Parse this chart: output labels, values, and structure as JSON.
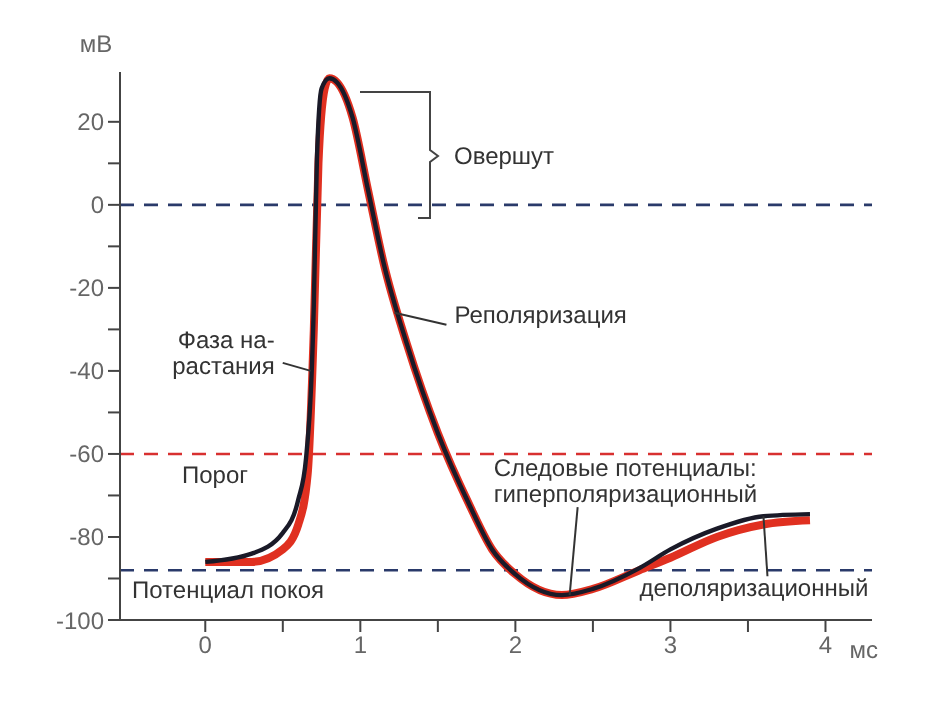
{
  "chart_data": {
    "type": "line",
    "xlabel": "мс",
    "ylabel": "мВ",
    "xlim": [
      -0.55,
      4.3
    ],
    "ylim": [
      -100,
      32
    ],
    "xticks": [
      0,
      {
        "value": 0.5,
        "label": null
      },
      1,
      {
        "value": 1.5,
        "label": null
      },
      2,
      {
        "value": 2.5,
        "label": null
      },
      3,
      {
        "value": 3.5,
        "label": null
      },
      4
    ],
    "yticks": [
      -100,
      {
        "value": -90,
        "label": null
      },
      -80,
      {
        "value": -70,
        "label": null
      },
      -60,
      {
        "value": -50,
        "label": null
      },
      -40,
      {
        "value": -30,
        "label": null
      },
      -20,
      {
        "value": -10,
        "label": null
      },
      0,
      {
        "value": 10,
        "label": null
      },
      20
    ],
    "marker": "none",
    "line_style": "solid",
    "series": [
      {
        "color": "#e03020",
        "x": [
          0,
          0.3,
          0.5,
          0.6,
          0.66,
          0.7,
          0.73,
          0.77,
          0.8,
          0.85,
          0.95,
          1.05,
          1.15,
          1.3,
          1.5,
          1.7,
          1.85,
          2.0,
          2.3,
          2.5,
          2.8,
          3.0,
          3.3,
          3.6,
          3.9
        ],
        "values": [
          -86,
          -86,
          -83,
          -77,
          -65,
          -30,
          10,
          28,
          30.5,
          29.5,
          21,
          3.5,
          -14,
          -33.5,
          -55,
          -72,
          -83,
          -89,
          -94,
          -92.5,
          -88,
          -85,
          -80,
          -77,
          -76
        ]
      },
      {
        "color": "#1a1a28",
        "x": [
          0,
          0.3,
          0.5,
          0.6,
          0.65,
          0.7,
          0.72,
          0.75,
          0.8,
          0.85,
          0.95,
          1.05,
          1.15,
          1.3,
          1.5,
          1.7,
          1.85,
          2.0,
          2.3,
          2.5,
          2.8,
          3.0,
          3.3,
          3.6,
          3.9
        ],
        "values": [
          -86,
          -84,
          -79,
          -71,
          -61,
          -24,
          11,
          28,
          30.5,
          29.5,
          21,
          3.5,
          -14,
          -33.5,
          -55,
          -72,
          -83,
          -89,
          -94,
          -92.5,
          -87.5,
          -83,
          -78,
          -75,
          -74.5
        ]
      }
    ],
    "ref_lines": [
      {
        "axis": "y",
        "value": 0,
        "color": "#2a3a6a",
        "line_style": "dashed"
      },
      {
        "axis": "y",
        "value": -60,
        "label": "Порог",
        "color": "#d83030",
        "line_style": "dashed"
      },
      {
        "axis": "y",
        "value": -88,
        "label": "Потенциал покоя",
        "color": "#2a3a6a",
        "line_style": "dashed"
      }
    ],
    "annotations": [
      "Овершут",
      {
        "text": "Фаза на-\nрастания",
        "x": 0.68,
        "y": -40
      },
      {
        "text": "Реполяризация",
        "x": 1.22,
        "y": -26
      },
      {
        "text": "Следовые потенциалы:\nгиперполяризационный",
        "x": 2.35,
        "y": -94
      },
      {
        "text": "деполяризационный",
        "x": 3.6,
        "y": -75
      }
    ]
  }
}
